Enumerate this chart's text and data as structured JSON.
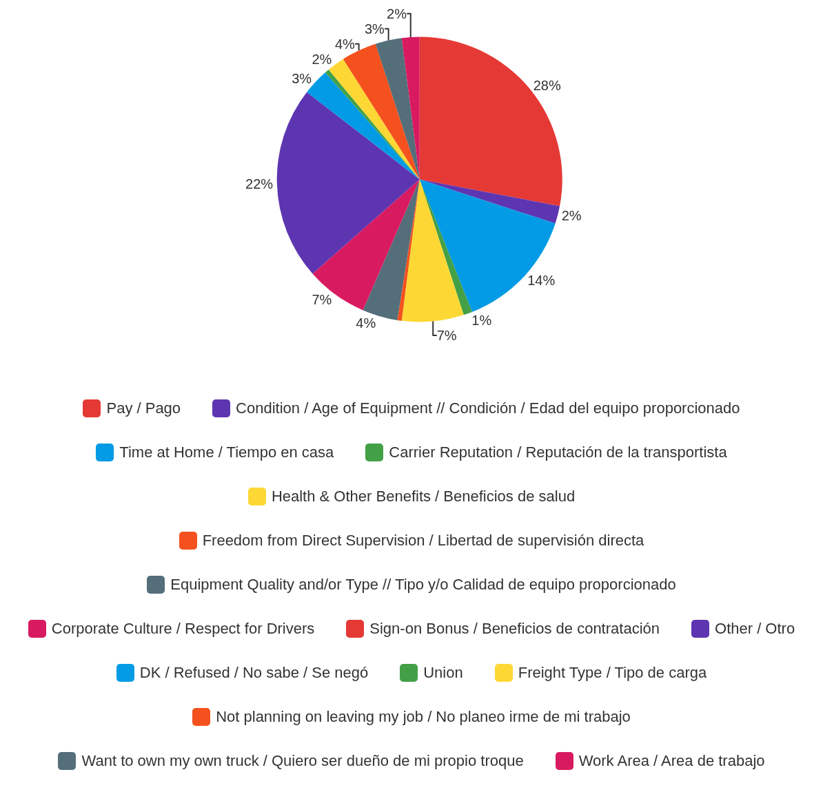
{
  "chart_data": {
    "type": "pie",
    "categories": [
      "Pay / Pago",
      "Condition / Age of Equipment // Condición / Edad del equipo proporcionado",
      "Time at Home / Tiempo en casa",
      "Carrier Reputation / Reputación de la transportista",
      "Health & Other Benefits / Beneficios de salud",
      "Freedom from Direct Supervision / Libertad de supervisión directa",
      "Equipment Quality and/or Type // Tipo y/o Calidad de equipo proporcionado",
      "Corporate Culture / Respect for Drivers",
      "Sign-on Bonus / Beneficios de contratación",
      "Other / Otro",
      "DK / Refused / No sabe / Se negó",
      "Union",
      "Freight Type / Tipo de carga",
      "Not planning on leaving my job / No planeo irme de mi trabajo",
      "Want to own my own truck / Quiero ser dueño de mi propio troque",
      "Work Area / Area de trabajo"
    ],
    "values": [
      28,
      2,
      14,
      1,
      7,
      0.5,
      4,
      7,
      0,
      22,
      3,
      0.5,
      2,
      4,
      3,
      2
    ],
    "value_labels": [
      "28%",
      "2%",
      "14%",
      "1%",
      "7%",
      null,
      "4%",
      "7%",
      null,
      "22%",
      "3%",
      null,
      "2%",
      "4%",
      "3%",
      "2%"
    ],
    "colors": [
      "#e53935",
      "#5e35b1",
      "#039be5",
      "#43a047",
      "#fdd835",
      "#f4511e",
      "#546e7a",
      "#d81b60",
      "#e53935",
      "#5e35b1",
      "#039be5",
      "#43a047",
      "#fdd835",
      "#f4511e",
      "#546e7a",
      "#d81b60"
    ],
    "legend": "bottom"
  }
}
